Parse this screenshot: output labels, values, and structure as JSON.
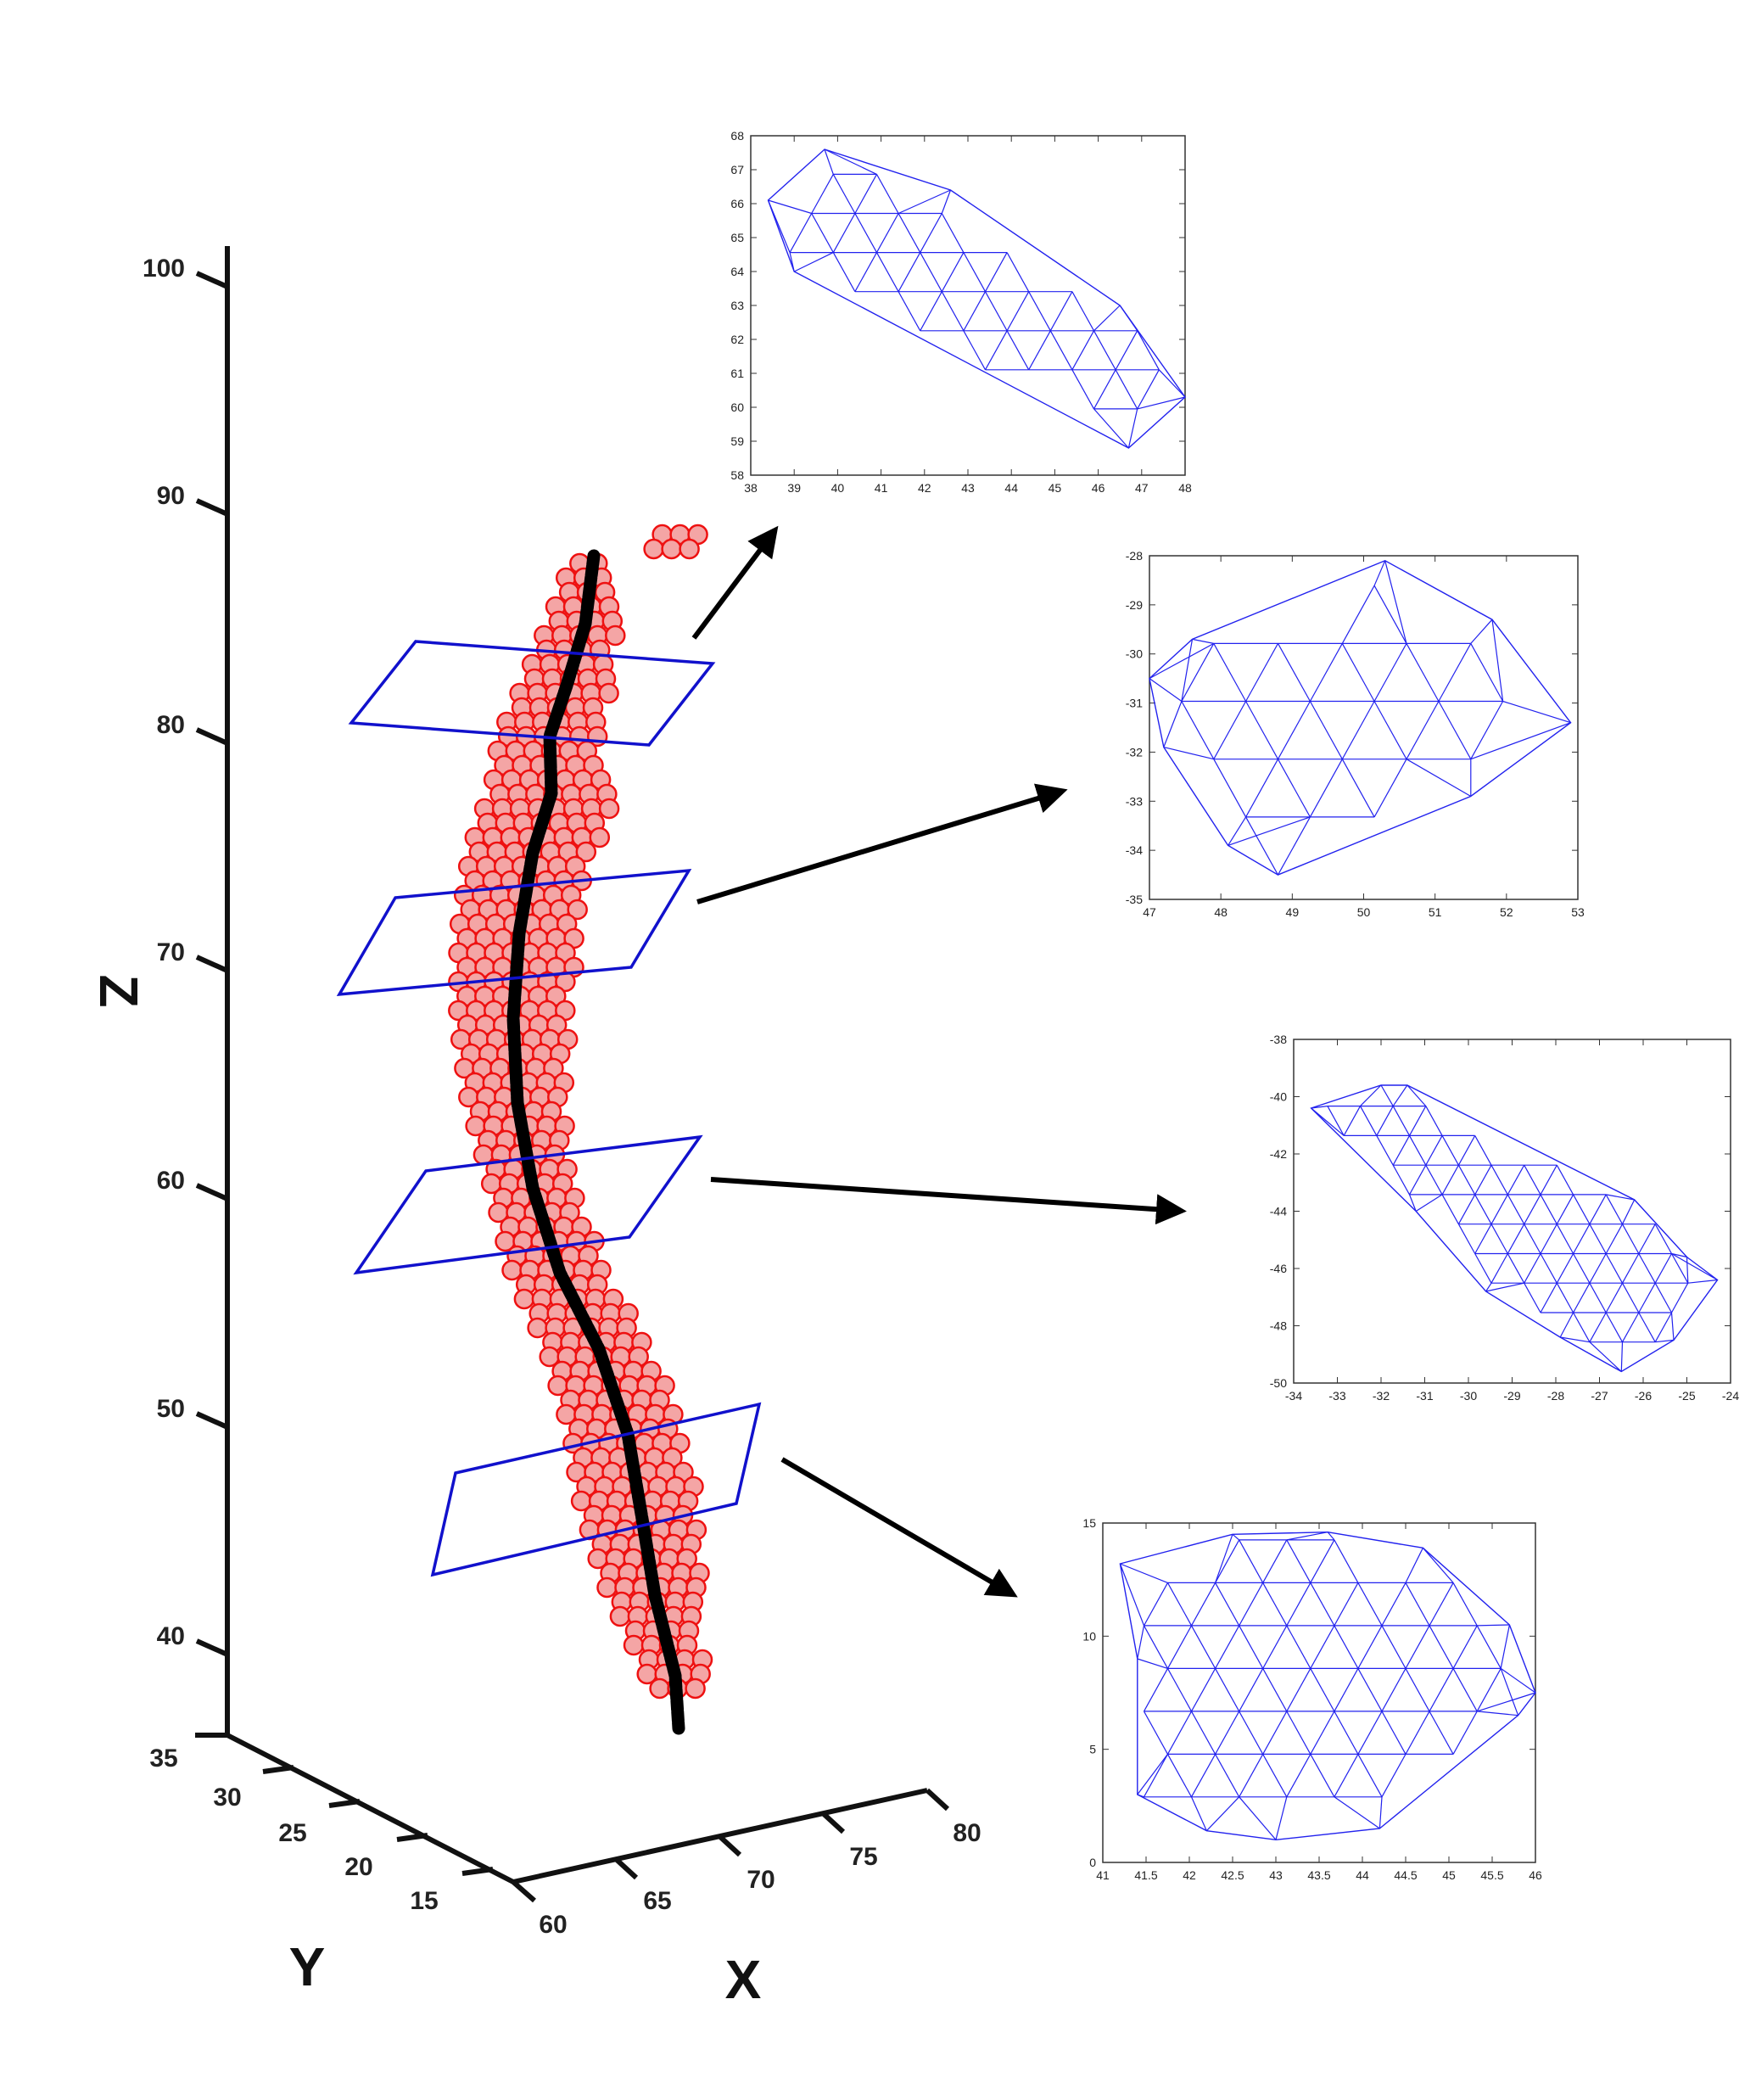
{
  "axes3d": {
    "z": {
      "label": "Z",
      "ticks": [
        "100",
        "90",
        "80",
        "70",
        "60",
        "50",
        "40"
      ]
    },
    "y": {
      "label": "Y",
      "ticks": [
        "35",
        "30",
        "25",
        "20",
        "15"
      ]
    },
    "x": {
      "label": "X",
      "ticks": [
        "60",
        "65",
        "70",
        "75",
        "80"
      ]
    }
  },
  "colors": {
    "points_fill": "#f4a5a5",
    "points_stroke": "#ee1111",
    "centerline": "#000000",
    "planes": "#1111cc",
    "mesh": "#2222ee",
    "arrows": "#000000"
  },
  "insets": [
    {
      "id": "slice-1",
      "xticks": [
        "38",
        "39",
        "40",
        "41",
        "42",
        "43",
        "44",
        "45",
        "46",
        "47",
        "48"
      ],
      "yticks": [
        "68",
        "67",
        "66",
        "65",
        "64",
        "63",
        "62",
        "61",
        "60",
        "59",
        "58"
      ]
    },
    {
      "id": "slice-2",
      "xticks": [
        "47",
        "48",
        "49",
        "50",
        "51",
        "52",
        "53"
      ],
      "yticks": [
        "-28",
        "-29",
        "-30",
        "-31",
        "-32",
        "-33",
        "-34",
        "-35"
      ]
    },
    {
      "id": "slice-3",
      "xticks": [
        "-34",
        "-33",
        "-32",
        "-31",
        "-30",
        "-29",
        "-28",
        "-27",
        "-26",
        "-25",
        "-24"
      ],
      "yticks": [
        "-38",
        "-40",
        "-42",
        "-44",
        "-46",
        "-48",
        "-50"
      ]
    },
    {
      "id": "slice-4",
      "xticks": [
        "41",
        "41.5",
        "42",
        "42.5",
        "43",
        "43.5",
        "44",
        "44.5",
        "45",
        "45.5",
        "46"
      ],
      "yticks": [
        "15",
        "10",
        "5",
        "0"
      ]
    }
  ]
}
